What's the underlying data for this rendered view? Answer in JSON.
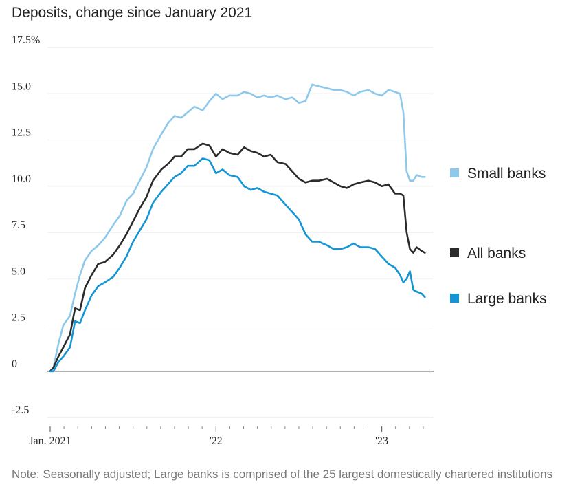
{
  "chart_data": {
    "type": "line",
    "title": "Deposits, change since January 2021",
    "note": "Note: Seasonally adjusted; Large banks is comprised of the 25 largest domestically chartered institutions",
    "ylim": [
      -2.5,
      17.5
    ],
    "y_ticks": [
      {
        "value": 17.5,
        "label": "17.5%"
      },
      {
        "value": 15.0,
        "label": "15.0"
      },
      {
        "value": 12.5,
        "label": "12.5"
      },
      {
        "value": 10.0,
        "label": "10.0"
      },
      {
        "value": 7.5,
        "label": "7.5"
      },
      {
        "value": 5.0,
        "label": "5.0"
      },
      {
        "value": 2.5,
        "label": "2.5"
      },
      {
        "value": 0,
        "label": "0"
      },
      {
        "value": -2.5,
        "label": "-2.5"
      }
    ],
    "x_range": [
      2021.0,
      2023.3
    ],
    "x_ticks": [
      {
        "value": 2021.0,
        "label": "Jan. 2021"
      },
      {
        "value": 2022.0,
        "label": "'22"
      },
      {
        "value": 2023.0,
        "label": "'23"
      }
    ],
    "series": [
      {
        "name": "Small banks",
        "color": "#8ec9ec",
        "x": [
          2021.0,
          2021.02,
          2021.05,
          2021.08,
          2021.12,
          2021.15,
          2021.18,
          2021.21,
          2021.25,
          2021.29,
          2021.33,
          2021.38,
          2021.42,
          2021.46,
          2021.5,
          2021.54,
          2021.58,
          2021.62,
          2021.67,
          2021.71,
          2021.75,
          2021.79,
          2021.83,
          2021.87,
          2021.92,
          2021.96,
          2022.0,
          2022.04,
          2022.08,
          2022.13,
          2022.17,
          2022.21,
          2022.25,
          2022.29,
          2022.33,
          2022.37,
          2022.42,
          2022.46,
          2022.5,
          2022.54,
          2022.58,
          2022.62,
          2022.67,
          2022.71,
          2022.75,
          2022.79,
          2022.83,
          2022.87,
          2022.92,
          2022.96,
          2023.0,
          2023.04,
          2023.08,
          2023.11,
          2023.13,
          2023.15,
          2023.17,
          2023.19,
          2023.21,
          2023.24,
          2023.26
        ],
        "values": [
          0.0,
          0.2,
          1.5,
          2.5,
          3.0,
          4.2,
          5.2,
          6.0,
          6.5,
          6.8,
          7.2,
          7.9,
          8.4,
          9.2,
          9.6,
          10.3,
          11.0,
          12.0,
          12.8,
          13.4,
          13.8,
          13.7,
          14.0,
          14.3,
          14.1,
          14.6,
          15.0,
          14.7,
          14.9,
          14.9,
          15.1,
          15.0,
          14.8,
          14.9,
          14.8,
          14.9,
          14.7,
          14.8,
          14.5,
          14.6,
          15.5,
          15.4,
          15.3,
          15.2,
          15.2,
          15.1,
          14.9,
          15.1,
          15.2,
          15.0,
          14.9,
          15.2,
          15.1,
          15.0,
          14.0,
          10.8,
          10.3,
          10.3,
          10.6,
          10.5,
          10.5
        ]
      },
      {
        "name": "All banks",
        "color": "#2b2b2b",
        "x": [
          2021.0,
          2021.02,
          2021.05,
          2021.08,
          2021.12,
          2021.15,
          2021.18,
          2021.21,
          2021.25,
          2021.29,
          2021.33,
          2021.38,
          2021.42,
          2021.46,
          2021.5,
          2021.54,
          2021.58,
          2021.62,
          2021.67,
          2021.71,
          2021.75,
          2021.79,
          2021.83,
          2021.87,
          2021.92,
          2021.96,
          2022.0,
          2022.04,
          2022.08,
          2022.13,
          2022.17,
          2022.21,
          2022.25,
          2022.29,
          2022.33,
          2022.37,
          2022.42,
          2022.46,
          2022.5,
          2022.54,
          2022.58,
          2022.62,
          2022.67,
          2022.71,
          2022.75,
          2022.79,
          2022.83,
          2022.87,
          2022.92,
          2022.96,
          2023.0,
          2023.04,
          2023.08,
          2023.11,
          2023.13,
          2023.15,
          2023.17,
          2023.19,
          2023.21,
          2023.24,
          2023.26
        ],
        "values": [
          0.0,
          0.2,
          0.8,
          1.3,
          2.0,
          3.4,
          3.3,
          4.5,
          5.2,
          5.8,
          5.9,
          6.3,
          6.8,
          7.4,
          8.1,
          8.8,
          9.4,
          10.3,
          10.9,
          11.2,
          11.6,
          11.6,
          12.0,
          12.0,
          12.3,
          12.2,
          11.6,
          12.0,
          11.8,
          11.7,
          12.1,
          11.9,
          11.8,
          11.6,
          11.7,
          11.3,
          11.2,
          10.8,
          10.4,
          10.2,
          10.3,
          10.3,
          10.4,
          10.2,
          10.0,
          9.9,
          10.1,
          10.2,
          10.3,
          10.2,
          10.0,
          10.1,
          9.6,
          9.6,
          9.5,
          7.5,
          6.6,
          6.4,
          6.7,
          6.5,
          6.4
        ]
      },
      {
        "name": "Large banks",
        "color": "#1496d6",
        "x": [
          2021.0,
          2021.02,
          2021.05,
          2021.08,
          2021.12,
          2021.15,
          2021.18,
          2021.21,
          2021.25,
          2021.29,
          2021.33,
          2021.38,
          2021.42,
          2021.46,
          2021.5,
          2021.54,
          2021.58,
          2021.62,
          2021.67,
          2021.71,
          2021.75,
          2021.79,
          2021.83,
          2021.87,
          2021.92,
          2021.96,
          2022.0,
          2022.04,
          2022.08,
          2022.13,
          2022.17,
          2022.21,
          2022.25,
          2022.29,
          2022.33,
          2022.37,
          2022.42,
          2022.46,
          2022.5,
          2022.54,
          2022.58,
          2022.62,
          2022.67,
          2022.71,
          2022.75,
          2022.79,
          2022.83,
          2022.87,
          2022.92,
          2022.96,
          2023.0,
          2023.04,
          2023.08,
          2023.11,
          2023.13,
          2023.15,
          2023.17,
          2023.19,
          2023.21,
          2023.24,
          2023.26
        ],
        "values": [
          0.0,
          0.0,
          0.5,
          0.8,
          1.3,
          2.7,
          2.6,
          3.3,
          4.1,
          4.6,
          4.8,
          5.1,
          5.6,
          6.2,
          7.0,
          7.6,
          8.2,
          9.1,
          9.7,
          10.1,
          10.5,
          10.7,
          11.1,
          11.1,
          11.5,
          11.4,
          10.7,
          10.9,
          10.6,
          10.5,
          10.0,
          9.8,
          9.9,
          9.7,
          9.6,
          9.5,
          9.0,
          8.6,
          8.2,
          7.4,
          7.0,
          7.0,
          6.8,
          6.6,
          6.6,
          6.7,
          6.9,
          6.7,
          6.7,
          6.6,
          6.2,
          5.8,
          5.6,
          5.2,
          4.8,
          5.0,
          5.4,
          4.4,
          4.3,
          4.2,
          4.0
        ]
      }
    ]
  }
}
